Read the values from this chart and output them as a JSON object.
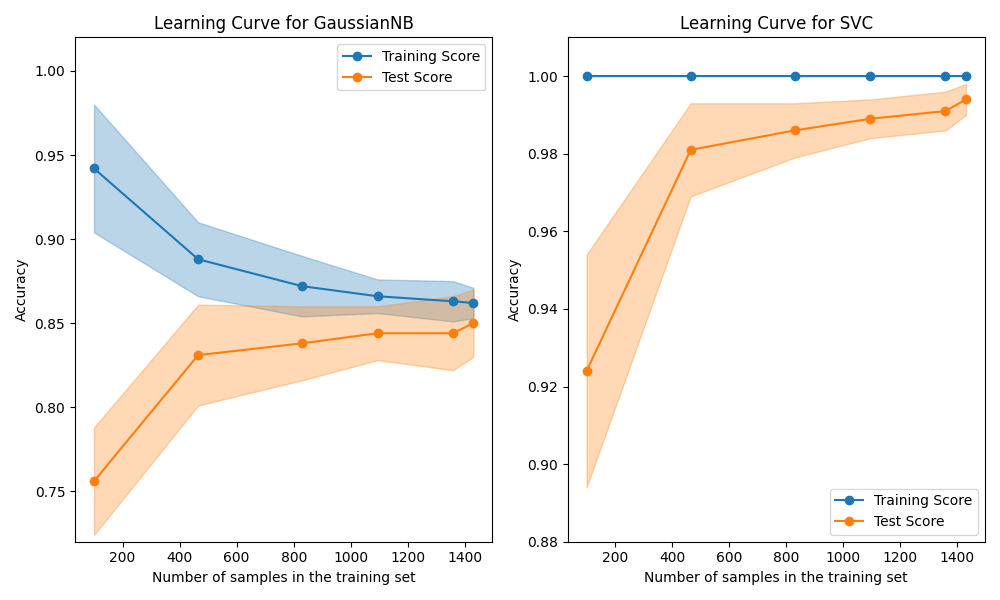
{
  "title_left": "Learning Curve for GaussianNB",
  "title_right": "Learning Curve for SVC",
  "xlabel": "Number of samples in the training set",
  "ylabel": "Accuracy",
  "train_sizes": [
    100,
    465,
    829,
    1094,
    1358,
    1430
  ],
  "gnb_train_mean": [
    0.942,
    0.888,
    0.872,
    0.866,
    0.863,
    0.862
  ],
  "gnb_train_std": [
    0.038,
    0.022,
    0.018,
    0.01,
    0.012,
    0.009
  ],
  "gnb_test_mean": [
    0.756,
    0.831,
    0.838,
    0.844,
    0.844,
    0.85
  ],
  "gnb_test_std": [
    0.032,
    0.03,
    0.022,
    0.016,
    0.022,
    0.02
  ],
  "gnb_ylim": [
    0.72,
    1.02
  ],
  "svc_train_mean": [
    1.0,
    1.0,
    1.0,
    1.0,
    1.0,
    1.0
  ],
  "svc_train_std": [
    0.0,
    0.0,
    0.0,
    0.0,
    0.0,
    0.0
  ],
  "svc_test_mean": [
    0.924,
    0.981,
    0.986,
    0.989,
    0.991,
    0.994
  ],
  "svc_test_std": [
    0.03,
    0.012,
    0.007,
    0.005,
    0.005,
    0.004
  ],
  "svc_ylim": [
    0.88,
    1.01
  ],
  "color_train": "#1f77b4",
  "color_test": "#ff7f0e",
  "alpha_fill": 0.3,
  "legend_train": "Training Score",
  "legend_test": "Test Score",
  "figsize": [
    10.0,
    6.0
  ],
  "dpi": 100
}
